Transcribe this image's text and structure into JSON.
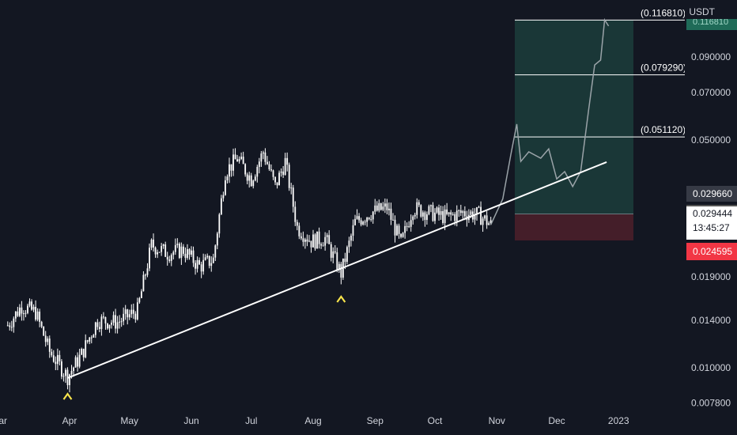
{
  "unit_label": "USDT",
  "colors": {
    "background": "#131722",
    "candle": "#ffffff",
    "trendline": "#ffffff",
    "target_zone": "#1c3b3a",
    "stop_zone": "#4a1f2a",
    "projection": "#9aa3a8",
    "marker": "#f7e34b"
  },
  "badges": {
    "upper": "0.029660",
    "price": "0.029444",
    "countdown": "13:45:27",
    "stop": "0.024595",
    "top_partial": "0.116810"
  },
  "chart_data": {
    "type": "line",
    "title": "",
    "xlabel": "",
    "ylabel": "",
    "x_ticks": [
      "ar",
      "Apr",
      "May",
      "Jun",
      "Jul",
      "Aug",
      "Sep",
      "Oct",
      "Nov",
      "Dec",
      "2023"
    ],
    "y_ticks": [
      "0.090000",
      "0.070000",
      "0.050000",
      "0.019000",
      "0.014000",
      "0.010000",
      "0.007800"
    ],
    "y_scale": "log",
    "fib_levels": [
      {
        "label": "(0.116810)",
        "value": 0.11681
      },
      {
        "label": "(0.079290)",
        "value": 0.07929
      },
      {
        "label": "(0.051120)",
        "value": 0.05112
      }
    ],
    "position": {
      "entry": 0.02966,
      "target": 0.11681,
      "stop": 0.024595
    },
    "markers": [
      {
        "label": "^",
        "date": "2022-03-31",
        "value": 0.0093
      },
      {
        "label": "^",
        "date": "2022-08-15",
        "value": 0.0185
      }
    ],
    "trendline": [
      {
        "date": "2022-03-31",
        "value": 0.0093
      },
      {
        "date": "2022-12-26",
        "value": 0.0428
      }
    ],
    "price_series": [
      {
        "date": "2022-03-01",
        "value": 0.0135
      },
      {
        "date": "2022-03-08",
        "value": 0.0155
      },
      {
        "date": "2022-03-15",
        "value": 0.0148
      },
      {
        "date": "2022-03-22",
        "value": 0.0112
      },
      {
        "date": "2022-03-31",
        "value": 0.0094
      },
      {
        "date": "2022-04-07",
        "value": 0.011
      },
      {
        "date": "2022-04-15",
        "value": 0.014
      },
      {
        "date": "2022-04-25",
        "value": 0.0138
      },
      {
        "date": "2022-05-05",
        "value": 0.015
      },
      {
        "date": "2022-05-12",
        "value": 0.0238
      },
      {
        "date": "2022-05-20",
        "value": 0.0225
      },
      {
        "date": "2022-05-28",
        "value": 0.023
      },
      {
        "date": "2022-06-05",
        "value": 0.0205
      },
      {
        "date": "2022-06-12",
        "value": 0.0215
      },
      {
        "date": "2022-06-18",
        "value": 0.04
      },
      {
        "date": "2022-06-24",
        "value": 0.044
      },
      {
        "date": "2022-07-01",
        "value": 0.038
      },
      {
        "date": "2022-07-07",
        "value": 0.046
      },
      {
        "date": "2022-07-13",
        "value": 0.036
      },
      {
        "date": "2022-07-18",
        "value": 0.043
      },
      {
        "date": "2022-07-24",
        "value": 0.027
      },
      {
        "date": "2022-07-31",
        "value": 0.0245
      },
      {
        "date": "2022-08-07",
        "value": 0.025
      },
      {
        "date": "2022-08-15",
        "value": 0.0195
      },
      {
        "date": "2022-08-22",
        "value": 0.028
      },
      {
        "date": "2022-08-30",
        "value": 0.03
      },
      {
        "date": "2022-09-07",
        "value": 0.031
      },
      {
        "date": "2022-09-14",
        "value": 0.024
      },
      {
        "date": "2022-09-20",
        "value": 0.031
      },
      {
        "date": "2022-09-28",
        "value": 0.03
      },
      {
        "date": "2022-10-07",
        "value": 0.029
      },
      {
        "date": "2022-10-15",
        "value": 0.03
      },
      {
        "date": "2022-10-23",
        "value": 0.0295
      },
      {
        "date": "2022-10-29",
        "value": 0.0275
      }
    ],
    "projection_series": [
      {
        "date": "2022-10-29",
        "value": 0.0275
      },
      {
        "date": "2022-11-04",
        "value": 0.033
      },
      {
        "date": "2022-11-08",
        "value": 0.045
      },
      {
        "date": "2022-11-11",
        "value": 0.056
      },
      {
        "date": "2022-11-13",
        "value": 0.043
      },
      {
        "date": "2022-11-17",
        "value": 0.046
      },
      {
        "date": "2022-11-23",
        "value": 0.044
      },
      {
        "date": "2022-11-27",
        "value": 0.047
      },
      {
        "date": "2022-12-01",
        "value": 0.038
      },
      {
        "date": "2022-12-05",
        "value": 0.04
      },
      {
        "date": "2022-12-09",
        "value": 0.036
      },
      {
        "date": "2022-12-13",
        "value": 0.04
      },
      {
        "date": "2022-12-17",
        "value": 0.062
      },
      {
        "date": "2022-12-20",
        "value": 0.085
      },
      {
        "date": "2022-12-23",
        "value": 0.088
      },
      {
        "date": "2022-12-25",
        "value": 0.117
      },
      {
        "date": "2022-12-27",
        "value": 0.112
      }
    ]
  }
}
